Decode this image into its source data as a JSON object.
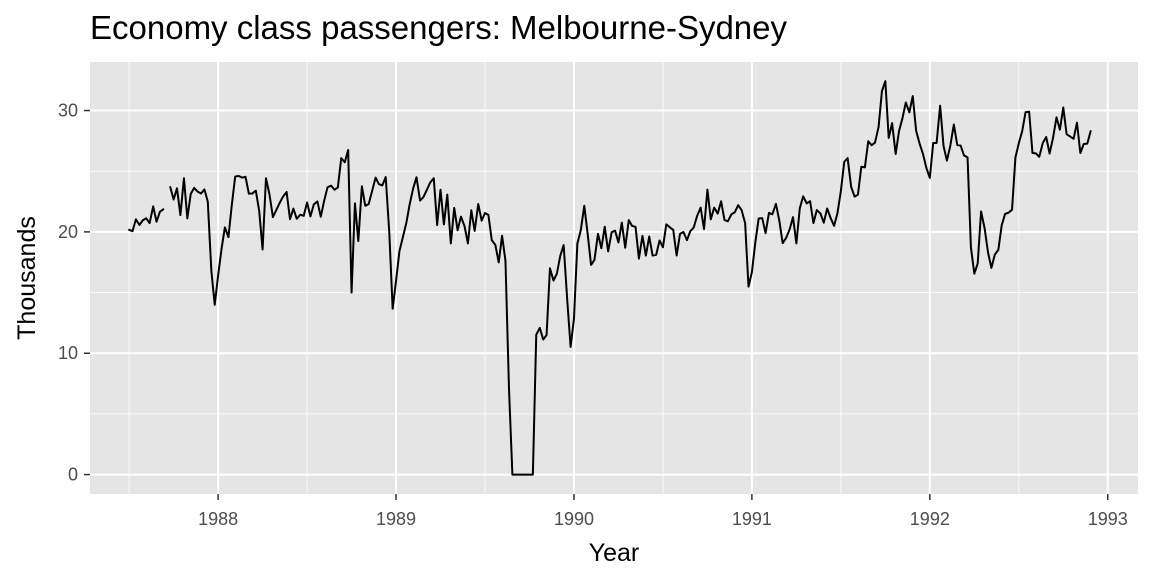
{
  "chart_data": {
    "type": "line",
    "title": "Economy class passengers: Melbourne-Sydney",
    "xlabel": "Year",
    "ylabel": "Thousands",
    "xlim": [
      1987.28,
      1993.17
    ],
    "ylim": [
      -1.6,
      34.0
    ],
    "x_ticks": [
      1988,
      1989,
      1990,
      1991,
      1992,
      1993
    ],
    "y_ticks": [
      0,
      10,
      20,
      30
    ],
    "grid": true,
    "legend": "none",
    "colors": {
      "panel": "#e5e5e5",
      "grid_major": "#ffffff",
      "line": "#000000",
      "tick_text": "#4d4d4d"
    },
    "series": [
      {
        "x": [
          1987.5,
          1987.519,
          1987.538,
          1987.558,
          1987.577,
          1987.596,
          1987.615,
          1987.635,
          1987.654,
          1987.673,
          1987.692,
          1987.712,
          1987.731,
          1987.75,
          1987.769,
          1987.788,
          1987.808,
          1987.827,
          1987.846,
          1987.865,
          1987.885,
          1987.904,
          1987.923,
          1987.942,
          1987.962,
          1987.981,
          1988.0,
          1988.019,
          1988.038,
          1988.058,
          1988.077,
          1988.096,
          1988.115,
          1988.135,
          1988.154,
          1988.173,
          1988.192,
          1988.212,
          1988.231,
          1988.25,
          1988.269,
          1988.288,
          1988.308,
          1988.327,
          1988.346,
          1988.365,
          1988.385,
          1988.404,
          1988.423,
          1988.442,
          1988.462,
          1988.481,
          1988.5,
          1988.519,
          1988.538,
          1988.558,
          1988.577,
          1988.596,
          1988.615,
          1988.635,
          1988.654,
          1988.673,
          1988.692,
          1988.712,
          1988.731,
          1988.75,
          1988.769,
          1988.788,
          1988.808,
          1988.827,
          1988.846,
          1988.865,
          1988.885,
          1988.904,
          1988.923,
          1988.942,
          1988.962,
          1988.981,
          1989.0,
          1989.019,
          1989.038,
          1989.058,
          1989.077,
          1989.096,
          1989.115,
          1989.135,
          1989.154,
          1989.173,
          1989.192,
          1989.212,
          1989.231,
          1989.25,
          1989.269,
          1989.288,
          1989.308,
          1989.327,
          1989.346,
          1989.365,
          1989.385,
          1989.404,
          1989.423,
          1989.442,
          1989.462,
          1989.481,
          1989.5,
          1989.519,
          1989.538,
          1989.558,
          1989.577,
          1989.596,
          1989.615,
          1989.635,
          1989.654,
          1989.673,
          1989.692,
          1989.712,
          1989.731,
          1989.75,
          1989.769,
          1989.788,
          1989.808,
          1989.827,
          1989.846,
          1989.865,
          1989.885,
          1989.904,
          1989.923,
          1989.942,
          1989.962,
          1989.981,
          1990.0,
          1990.019,
          1990.038,
          1990.058,
          1990.077,
          1990.096,
          1990.115,
          1990.135,
          1990.154,
          1990.173,
          1990.192,
          1990.212,
          1990.231,
          1990.25,
          1990.269,
          1990.288,
          1990.308,
          1990.327,
          1990.346,
          1990.365,
          1990.385,
          1990.404,
          1990.423,
          1990.442,
          1990.462,
          1990.481,
          1990.5,
          1990.519,
          1990.538,
          1990.558,
          1990.577,
          1990.596,
          1990.615,
          1990.635,
          1990.654,
          1990.673,
          1990.692,
          1990.712,
          1990.731,
          1990.75,
          1990.769,
          1990.788,
          1990.808,
          1990.827,
          1990.846,
          1990.865,
          1990.885,
          1990.904,
          1990.923,
          1990.942,
          1990.962,
          1990.981,
          1991.0,
          1991.019,
          1991.038,
          1991.058,
          1991.077,
          1991.096,
          1991.115,
          1991.135,
          1991.154,
          1991.173,
          1991.192,
          1991.212,
          1991.231,
          1991.25,
          1991.269,
          1991.288,
          1991.308,
          1991.327,
          1991.346,
          1991.365,
          1991.385,
          1991.404,
          1991.423,
          1991.442,
          1991.462,
          1991.481,
          1991.5,
          1991.519,
          1991.538,
          1991.558,
          1991.577,
          1991.596,
          1991.615,
          1991.635,
          1991.654,
          1991.673,
          1991.692,
          1991.712,
          1991.731,
          1991.75,
          1991.769,
          1991.788,
          1991.808,
          1991.827,
          1991.846,
          1991.865,
          1991.885,
          1991.904,
          1991.923,
          1991.942,
          1991.962,
          1991.981,
          1992.0,
          1992.019,
          1992.038,
          1992.058,
          1992.077,
          1992.096,
          1992.115,
          1992.135,
          1992.154,
          1992.173,
          1992.192,
          1992.212,
          1992.231,
          1992.25,
          1992.269,
          1992.288,
          1992.308,
          1992.327,
          1992.346,
          1992.365,
          1992.385,
          1992.404,
          1992.423,
          1992.442,
          1992.462,
          1992.481,
          1992.5,
          1992.519,
          1992.538,
          1992.558,
          1992.577,
          1992.596,
          1992.615,
          1992.635,
          1992.654,
          1992.673,
          1992.692,
          1992.712,
          1992.731,
          1992.75,
          1992.769,
          1992.788,
          1992.808,
          1992.827,
          1992.846,
          1992.865,
          1992.885,
          1992.904
        ],
        "y": [
          20.17,
          20.06,
          21.03,
          20.57,
          20.96,
          21.12,
          20.73,
          22.1,
          20.84,
          21.66,
          21.86,
          null,
          23.7,
          22.67,
          23.59,
          21.38,
          24.42,
          21.11,
          23.12,
          23.62,
          23.32,
          23.16,
          23.5,
          22.49,
          16.8,
          13.99,
          16.4,
          18.57,
          20.37,
          19.57,
          22.22,
          24.56,
          24.61,
          24.47,
          24.54,
          23.15,
          23.16,
          23.4,
          21.71,
          18.55,
          24.42,
          23.15,
          21.22,
          21.8,
          22.39,
          22.91,
          23.29,
          21.05,
          21.92,
          21.08,
          21.42,
          21.32,
          22.42,
          21.28,
          22.27,
          22.51,
          21.25,
          22.56,
          23.68,
          23.81,
          23.47,
          23.66,
          26.08,
          25.74,
          26.75,
          15.0,
          22.35,
          19.24,
          23.76,
          22.15,
          22.29,
          23.34,
          24.47,
          23.93,
          23.83,
          24.52,
          19.95,
          13.67,
          15.95,
          18.4,
          19.55,
          20.75,
          22.3,
          23.57,
          24.5,
          22.58,
          22.87,
          23.46,
          24.07,
          24.42,
          20.56,
          23.47,
          20.62,
          23.07,
          19.05,
          21.98,
          20.14,
          21.26,
          20.47,
          19.05,
          21.78,
          20.08,
          22.3,
          20.93,
          21.55,
          21.4,
          19.32,
          18.93,
          17.49,
          19.68,
          17.62,
          7.0,
          0.0,
          0.0,
          0.0,
          0.0,
          0.0,
          0.0,
          0.0,
          11.53,
          12.09,
          11.13,
          11.49,
          17.0,
          15.99,
          16.56,
          18.03,
          18.91,
          14.44,
          10.52,
          12.85,
          19.03,
          20.12,
          22.15,
          19.83,
          17.28,
          17.69,
          19.84,
          18.65,
          20.42,
          18.39,
          19.98,
          20.1,
          19.13,
          20.76,
          18.69,
          20.97,
          20.49,
          20.42,
          17.8,
          19.67,
          18.05,
          19.62,
          18.05,
          18.11,
          19.29,
          18.74,
          20.62,
          20.39,
          20.16,
          18.05,
          19.84,
          19.99,
          19.32,
          20.06,
          20.36,
          21.31,
          22.0,
          20.24,
          23.48,
          21.03,
          22.0,
          21.51,
          22.52,
          20.98,
          20.87,
          21.45,
          21.62,
          22.2,
          21.8,
          20.72,
          15.49,
          16.68,
          19.11,
          21.1,
          21.13,
          19.9,
          21.57,
          21.45,
          22.31,
          20.93,
          19.07,
          19.49,
          20.21,
          21.21,
          19.05,
          21.93,
          22.93,
          22.35,
          22.53,
          20.73,
          21.8,
          21.52,
          20.76,
          21.93,
          21.16,
          20.5,
          21.55,
          23.36,
          25.77,
          26.08,
          23.7,
          22.91,
          23.07,
          25.37,
          25.32,
          27.47,
          27.14,
          27.36,
          28.65,
          31.61,
          32.42,
          27.74,
          28.96,
          26.42,
          28.31,
          29.36,
          30.66,
          29.85,
          31.19,
          28.34,
          27.3,
          26.4,
          25.25,
          24.45,
          27.32,
          27.32,
          30.4,
          27.09,
          25.87,
          27.09,
          28.85,
          27.17,
          27.11,
          26.3,
          26.14,
          18.72,
          16.56,
          17.39,
          21.68,
          20.29,
          18.31,
          17.03,
          18.12,
          18.52,
          20.55,
          21.48,
          21.58,
          21.82,
          26.12,
          27.31,
          28.29,
          29.86,
          29.91,
          26.5,
          26.47,
          26.19,
          27.33,
          27.82,
          26.46,
          27.71,
          29.44,
          28.42,
          30.25,
          28.04,
          27.87,
          27.67,
          29.0,
          26.5,
          27.24,
          27.27,
          28.31
        ]
      }
    ]
  }
}
